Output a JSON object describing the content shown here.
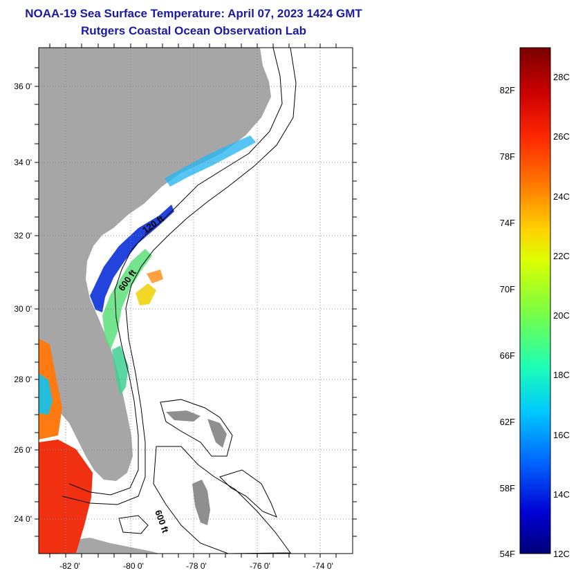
{
  "title_line1": "NOAA-19 Sea Surface Temperature:  April 07, 2023 1424 GMT",
  "title_line2": "Rutgers Coastal Ocean Observation Lab",
  "map": {
    "lat_labels": [
      "36 0'",
      "34 0'",
      "32 0'",
      "30 0'",
      "28 0'",
      "26 0'",
      "24 0'"
    ],
    "lon_labels": [
      "-82 0'",
      "-80 0'",
      "-78 0'",
      "-76 0'",
      "-74 0'"
    ],
    "contour_labels": [
      "120 ft",
      "600 ft",
      "600 ft"
    ],
    "colors": {
      "land": "#a6a6a6",
      "frame": "#000000"
    }
  },
  "colorbar": {
    "fahrenheit": [
      "82F",
      "78F",
      "74F",
      "70F",
      "66F",
      "62F",
      "58F",
      "54F"
    ],
    "celsius": [
      "28C",
      "26C",
      "24C",
      "22C",
      "20C",
      "18C",
      "16C",
      "14C",
      "12C"
    ],
    "gradient": [
      "#7a0000",
      "#cc0000",
      "#ff2a00",
      "#ff7800",
      "#ffd200",
      "#dcff00",
      "#7cff40",
      "#1effb4",
      "#00c8ff",
      "#0064ff",
      "#0000d2",
      "#000078"
    ]
  }
}
